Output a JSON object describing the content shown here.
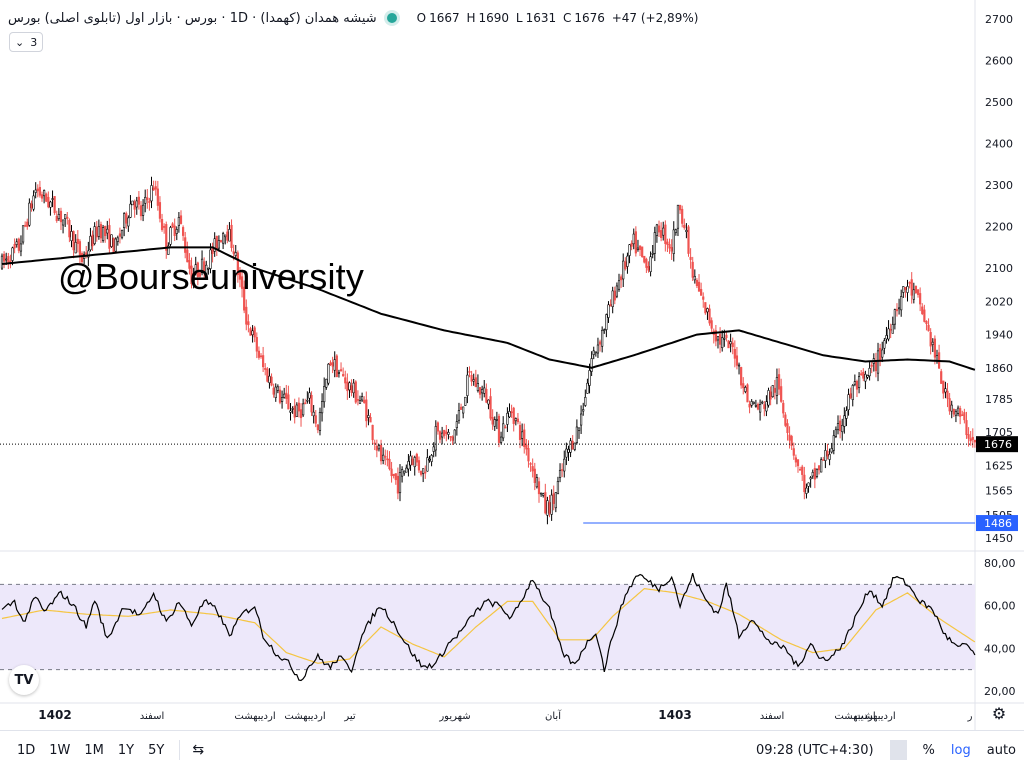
{
  "header": {
    "title": "شیشه همدان (کهمدا) · 1D · بورس · بازار اول (تابلوی اصلی) بورس",
    "ohlc": [
      {
        "k": "O",
        "v": "1667"
      },
      {
        "k": "H",
        "v": "1690"
      },
      {
        "k": "L",
        "v": "1631"
      },
      {
        "k": "C",
        "v": "1676"
      }
    ],
    "change": "+47 (+2,89%)",
    "indicator_count": "3"
  },
  "watermark": "@Bourseuniversity",
  "logo_text": "TV",
  "bottom": {
    "timeframes": [
      "1D",
      "1W",
      "1M",
      "1Y",
      "5Y"
    ],
    "clock": "09:28 (UTC+4:30)",
    "percent": "%",
    "log": "log",
    "auto": "auto"
  },
  "colors": {
    "up": "#000000",
    "down": "#ef5350",
    "ma": "#000000",
    "rsi": "#000000",
    "rsi_ma": "#f5c542",
    "rsi_band": "#ede8fa",
    "support": "#2962ff",
    "last": "#000000"
  },
  "chart_data": [
    {
      "type": "candlestick",
      "price_axis": [
        "2700",
        "2600",
        "2500",
        "2400",
        "2300",
        "2200",
        "2100",
        "2020",
        "1940",
        "1860",
        "1785",
        "1705",
        "1625",
        "1565",
        "1505",
        "1450"
      ],
      "time_axis": [
        "1402",
        "اسفند",
        "اردیبهشت",
        "اردیبهشت",
        "تیر",
        "شهریور",
        "آبان",
        "1403",
        "اسفند",
        "اردیبهشت",
        "اردیبهشت",
        "ر"
      ],
      "last_price_label": "1676",
      "support_label": "1486",
      "ylim": [
        1450,
        2700
      ],
      "series": [
        {
          "waypoints": [
            [
              0,
              2110
            ],
            [
              8,
              2150
            ],
            [
              16,
              2290
            ],
            [
              24,
              2250
            ],
            [
              30,
              2210
            ],
            [
              38,
              2120
            ],
            [
              46,
              2200
            ],
            [
              54,
              2150
            ],
            [
              62,
              2270
            ],
            [
              66,
              2230
            ],
            [
              72,
              2300
            ],
            [
              78,
              2160
            ],
            [
              84,
              2220
            ],
            [
              90,
              2080
            ],
            [
              98,
              2120
            ],
            [
              106,
              2200
            ],
            [
              110,
              2150
            ],
            [
              116,
              1980
            ],
            [
              124,
              1860
            ],
            [
              132,
              1790
            ],
            [
              140,
              1750
            ],
            [
              146,
              1780
            ],
            [
              150,
              1720
            ],
            [
              156,
              1880
            ],
            [
              164,
              1820
            ],
            [
              172,
              1770
            ],
            [
              180,
              1640
            ],
            [
              188,
              1580
            ],
            [
              194,
              1650
            ],
            [
              200,
              1610
            ],
            [
              206,
              1700
            ],
            [
              214,
              1690
            ],
            [
              222,
              1840
            ],
            [
              230,
              1790
            ],
            [
              236,
              1700
            ],
            [
              242,
              1760
            ],
            [
              250,
              1650
            ],
            [
              258,
              1520
            ],
            [
              262,
              1540
            ],
            [
              268,
              1650
            ],
            [
              274,
              1720
            ],
            [
              280,
              1880
            ],
            [
              286,
              1960
            ],
            [
              292,
              2060
            ],
            [
              300,
              2160
            ],
            [
              306,
              2100
            ],
            [
              312,
              2200
            ],
            [
              318,
              2150
            ],
            [
              322,
              2260
            ],
            [
              328,
              2080
            ],
            [
              334,
              2000
            ],
            [
              340,
              1930
            ],
            [
              348,
              1900
            ],
            [
              354,
              1780
            ],
            [
              360,
              1760
            ],
            [
              368,
              1820
            ],
            [
              376,
              1660
            ],
            [
              382,
              1560
            ],
            [
              388,
              1620
            ],
            [
              396,
              1690
            ],
            [
              404,
              1810
            ],
            [
              410,
              1830
            ],
            [
              416,
              1880
            ],
            [
              424,
              2000
            ],
            [
              430,
              2060
            ],
            [
              436,
              2010
            ],
            [
              442,
              1910
            ],
            [
              448,
              1790
            ],
            [
              454,
              1750
            ],
            [
              462,
              1676
            ]
          ]
        }
      ],
      "moving_average": [
        [
          0,
          2110
        ],
        [
          40,
          2130
        ],
        [
          80,
          2150
        ],
        [
          100,
          2150
        ],
        [
          120,
          2100
        ],
        [
          150,
          2050
        ],
        [
          180,
          1990
        ],
        [
          210,
          1950
        ],
        [
          240,
          1920
        ],
        [
          260,
          1880
        ],
        [
          280,
          1860
        ],
        [
          300,
          1890
        ],
        [
          330,
          1940
        ],
        [
          350,
          1950
        ],
        [
          370,
          1920
        ],
        [
          390,
          1890
        ],
        [
          410,
          1875
        ],
        [
          430,
          1880
        ],
        [
          450,
          1875
        ],
        [
          462,
          1855
        ]
      ],
      "support_level": 1486
    },
    {
      "type": "line",
      "name": "RSI",
      "axis": [
        "80,00",
        "60,00",
        "40,00",
        "20,00"
      ],
      "ylim": [
        15,
        85
      ],
      "bands": [
        70,
        30
      ],
      "series": [
        {
          "waypoints": [
            [
              0,
              58
            ],
            [
              6,
              62
            ],
            [
              10,
              52
            ],
            [
              16,
              64
            ],
            [
              20,
              57
            ],
            [
              28,
              66
            ],
            [
              34,
              60
            ],
            [
              40,
              50
            ],
            [
              44,
              63
            ],
            [
              50,
              44
            ],
            [
              58,
              60
            ],
            [
              66,
              55
            ],
            [
              72,
              66
            ],
            [
              78,
              52
            ],
            [
              84,
              62
            ],
            [
              90,
              51
            ],
            [
              96,
              62
            ],
            [
              102,
              58
            ],
            [
              108,
              46
            ],
            [
              114,
              56
            ],
            [
              120,
              60
            ],
            [
              124,
              46
            ],
            [
              130,
              38
            ],
            [
              136,
              33
            ],
            [
              142,
              25
            ],
            [
              146,
              32
            ],
            [
              150,
              36
            ],
            [
              156,
              31
            ],
            [
              160,
              36
            ],
            [
              166,
              30
            ],
            [
              170,
              44
            ],
            [
              176,
              55
            ],
            [
              180,
              60
            ],
            [
              186,
              52
            ],
            [
              190,
              45
            ],
            [
              196,
              36
            ],
            [
              200,
              31
            ],
            [
              206,
              33
            ],
            [
              212,
              42
            ],
            [
              218,
              48
            ],
            [
              224,
              56
            ],
            [
              230,
              62
            ],
            [
              236,
              60
            ],
            [
              242,
              54
            ],
            [
              248,
              65
            ],
            [
              252,
              73
            ],
            [
              256,
              65
            ],
            [
              260,
              58
            ],
            [
              266,
              38
            ],
            [
              272,
              32
            ],
            [
              276,
              40
            ],
            [
              282,
              48
            ],
            [
              286,
              30
            ],
            [
              290,
              46
            ],
            [
              296,
              65
            ],
            [
              302,
              75
            ],
            [
              306,
              72
            ],
            [
              312,
              68
            ],
            [
              318,
              74
            ],
            [
              322,
              60
            ],
            [
              328,
              74
            ],
            [
              334,
              63
            ],
            [
              340,
              56
            ],
            [
              344,
              70
            ],
            [
              350,
              46
            ],
            [
              356,
              54
            ],
            [
              360,
              48
            ],
            [
              366,
              42
            ],
            [
              372,
              40
            ],
            [
              378,
              31
            ],
            [
              384,
              43
            ],
            [
              388,
              35
            ],
            [
              394,
              36
            ],
            [
              400,
              43
            ],
            [
              406,
              56
            ],
            [
              412,
              68
            ],
            [
              418,
              60
            ],
            [
              424,
              74
            ],
            [
              430,
              70
            ],
            [
              436,
              62
            ],
            [
              442,
              58
            ],
            [
              448,
              46
            ],
            [
              454,
              40
            ],
            [
              458,
              42
            ],
            [
              462,
              37
            ]
          ]
        },
        {
          "waypoints": [
            [
              0,
              54
            ],
            [
              20,
              58
            ],
            [
              40,
              56
            ],
            [
              60,
              55
            ],
            [
              80,
              58
            ],
            [
              100,
              56
            ],
            [
              120,
              52
            ],
            [
              135,
              38
            ],
            [
              150,
              33
            ],
            [
              165,
              35
            ],
            [
              180,
              50
            ],
            [
              195,
              42
            ],
            [
              210,
              36
            ],
            [
              225,
              50
            ],
            [
              240,
              62
            ],
            [
              252,
              62
            ],
            [
              265,
              44
            ],
            [
              280,
              44
            ],
            [
              290,
              55
            ],
            [
              305,
              68
            ],
            [
              320,
              66
            ],
            [
              335,
              62
            ],
            [
              350,
              56
            ],
            [
              370,
              44
            ],
            [
              385,
              38
            ],
            [
              400,
              40
            ],
            [
              415,
              58
            ],
            [
              430,
              66
            ],
            [
              445,
              54
            ],
            [
              462,
              43
            ]
          ]
        }
      ]
    }
  ]
}
